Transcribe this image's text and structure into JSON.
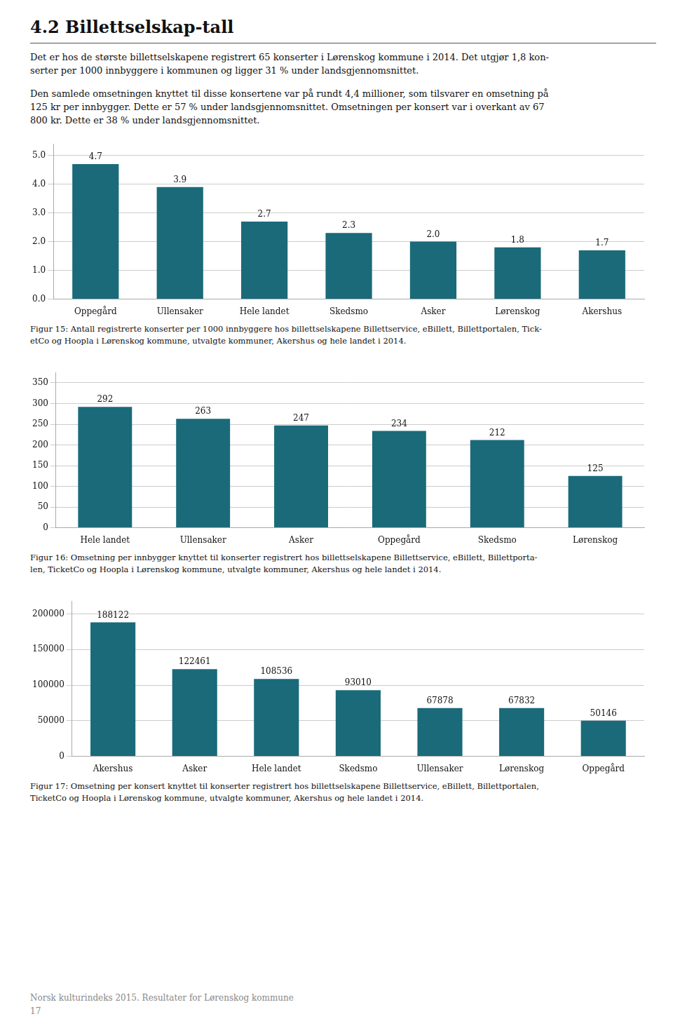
{
  "title": "4.2  Billettselskap-tall",
  "annotations": [
    [
      "Det er hos de største billettselskapene registrert 65 konserter i Lørenskog kommune i 2014. Det utgjør 1,8 kon-",
      "serter per 1000 innbyggere i kommunen og ligger 31 % under landsgjennomsnittet."
    ],
    [
      "Den samlede omsetningen knyttet til disse konsertene var på rundt 4,4 millioner, som tilsvarer en omsetning på",
      "125 kr per innbygger. Dette er 57 % under landsgjennomsnittet. Omsetningen per konsert var i overkant av 67",
      "800 kr. Dette er 38 % under landsgjennomsnittet."
    ],
    [
      "Norsk kulturindeks 2015. Resultater for Lørenskog kommune",
      "17"
    ]
  ],
  "chart_data": [
    {
      "type": "bar",
      "categories": [
        "Oppegård",
        "Ullensaker",
        "Hele landet",
        "Skedsmo",
        "Asker",
        "Lørenskog",
        "Akershus"
      ],
      "values": [
        4.7,
        3.9,
        2.7,
        2.3,
        2.0,
        1.8,
        1.7
      ],
      "value_labels": [
        "4.7",
        "3.9",
        "2.7",
        "2.3",
        "2.0",
        "1.8",
        "1.7"
      ],
      "color": "#1a6a7a",
      "ylim": [
        0,
        5.4
      ],
      "yticks": [
        {
          "value": 0,
          "label": "0.0"
        },
        {
          "value": 1,
          "label": "1.0"
        },
        {
          "value": 2,
          "label": "2.0"
        },
        {
          "value": 3,
          "label": "3.0"
        },
        {
          "value": 4,
          "label": "4.0"
        },
        {
          "value": 5,
          "label": "5.0"
        }
      ],
      "grid": true,
      "data_labels": true,
      "annotations": [
        "Figur 15: Antall registrerte konserter per 1000 innbyggere hos billettselskapene Billettservice, eBillett, Billettportalen, Tick-",
        "etCo og Hoopla i Lørenskog kommune, utvalgte kommuner, Akershus og hele landet  i 2014."
      ]
    },
    {
      "type": "bar",
      "categories": [
        "Hele landet",
        "Ullensaker",
        "Asker",
        "Oppegård",
        "Skedsmo",
        "Lørenskog"
      ],
      "values": [
        292,
        263,
        247,
        234,
        212,
        125
      ],
      "color": "#1a6a7a",
      "ylim": [
        0,
        375
      ],
      "yticks": [
        0,
        50,
        100,
        150,
        200,
        250,
        300,
        350
      ],
      "grid": true,
      "data_labels": true,
      "annotations": [
        "Figur 16: Omsetning per innbygger knyttet til konserter registrert hos billettselskapene Billettservice, eBillett, Billettporta-",
        "len, TicketCo og Hoopla i Lørenskog kommune, utvalgte kommuner, Akershus og hele landet  i 2014."
      ]
    },
    {
      "type": "bar",
      "categories": [
        "Akershus",
        "Asker",
        "Hele landet",
        "Skedsmo",
        "Ullensaker",
        "Lørenskog",
        "Oppegård"
      ],
      "values": [
        188122,
        122461,
        108536,
        93010,
        67878,
        67832,
        50146
      ],
      "color": "#1a6a7a",
      "ylim": [
        0,
        218000
      ],
      "yticks": [
        0,
        50000,
        100000,
        150000,
        200000
      ],
      "grid": true,
      "data_labels": true,
      "annotations": [
        "Figur 17: Omsetning per konsert knyttet til konserter registrert hos billettselskapene Billettservice, eBillett, Billettportalen,",
        "TicketCo og Hoopla i Lørenskog kommune, utvalgte kommuner, Akershus og hele landet  i 2014."
      ]
    }
  ]
}
